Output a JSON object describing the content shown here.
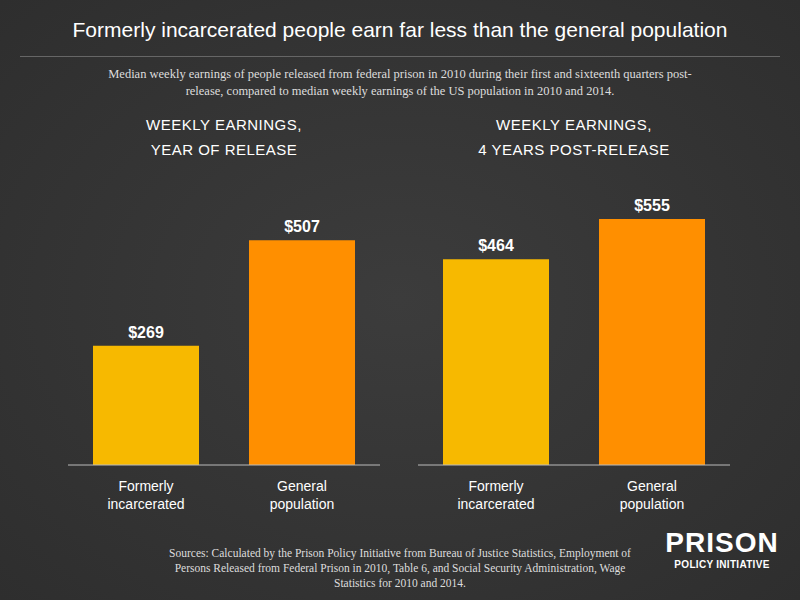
{
  "title": "Formerly incarcerated people earn far less than the general population",
  "subtitle": "Median weekly earnings of people released from federal prison in 2010 during their first and sixteenth quarters post-release, compared to median weekly earnings of the US population in 2010 and 2014.",
  "source": "Sources: Calculated by the Prison Policy Initiative from Bureau of Justice Statistics, Employment of Persons Released from Federal Prison in 2010, Table 6, and Social Security Administration, Wage Statistics for 2010 and 2014.",
  "logo": [
    "PRISON",
    "POLICY INITIATIVE"
  ],
  "chart_data": [
    {
      "type": "bar",
      "title": [
        "WEEKLY EARNINGS,",
        "YEAR OF RELEASE"
      ],
      "categories": [
        "Formerly incarcerated",
        "General population"
      ],
      "values": [
        269,
        507
      ],
      "value_labels": [
        "$269",
        "$507"
      ],
      "colors": [
        "#f7b900",
        "#ff8f00"
      ],
      "ylim": [
        0,
        600
      ],
      "data_labels": true,
      "tick_labels": "x",
      "grid": false
    },
    {
      "type": "bar",
      "title": [
        "WEEKLY EARNINGS,",
        "4 YEARS POST-RELEASE"
      ],
      "categories": [
        "Formerly incarcerated",
        "General population"
      ],
      "values": [
        464,
        555
      ],
      "value_labels": [
        "$464",
        "$555"
      ],
      "colors": [
        "#f7b900",
        "#ff8f00"
      ],
      "ylim": [
        0,
        600
      ],
      "data_labels": true,
      "tick_labels": "x",
      "grid": false
    }
  ]
}
